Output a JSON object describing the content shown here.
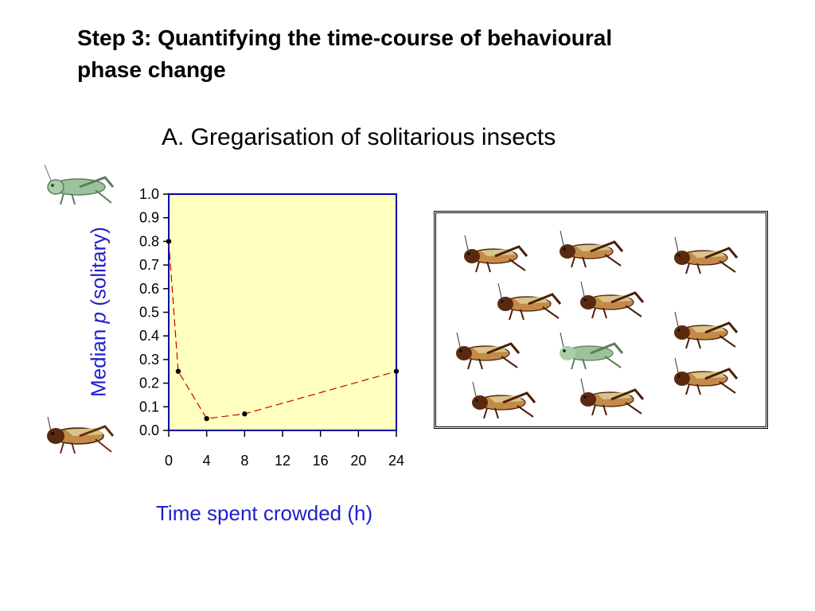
{
  "title_lines": [
    "Step 3: Quantifying the time-course of behavioural",
    "phase change"
  ],
  "chart_data": {
    "type": "line",
    "title": "A. Gregarisation of solitarious insects",
    "xlabel": "Time spent crowded (h)",
    "ylabel_prefix": "Median ",
    "ylabel_italic": "p",
    "ylabel_suffix": " (solitary)",
    "xlim": [
      0,
      24
    ],
    "ylim": [
      0,
      1.0
    ],
    "xticks": [
      "0",
      "4",
      "8",
      "12",
      "16",
      "20",
      "24"
    ],
    "yticks": [
      "0.0",
      "0.1",
      "0.2",
      "0.3",
      "0.4",
      "0.5",
      "0.6",
      "0.7",
      "0.8",
      "0.9",
      "1.0"
    ],
    "series": [
      {
        "x": [
          0,
          1,
          4,
          8,
          24
        ],
        "y": [
          0.8,
          0.25,
          0.05,
          0.07,
          0.25
        ]
      }
    ],
    "grid": false,
    "plot_background": "#ffffc0",
    "line_color": "#cc0000",
    "axis_color": "#0000aa"
  },
  "icons": {
    "solitarious": "green-locust-icon",
    "gregarious": "brown-locust-icon"
  },
  "colors": {
    "label_blue": "#1f1fcc",
    "locust_brown": "#8b4a1c",
    "locust_green": "#8ab38a"
  }
}
